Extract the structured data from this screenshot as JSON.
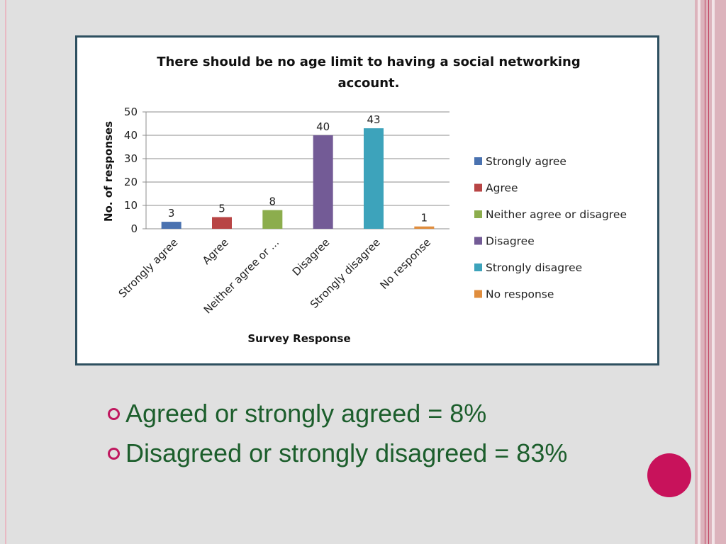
{
  "slide": {
    "bullets": [
      "Agreed or strongly agreed = 8%",
      "Disagreed or strongly disagreed = 83%"
    ],
    "colors": {
      "bullet_text": "#1c5e2c",
      "bullet_marker": "#c0185f",
      "accent_dot": "#c8125b",
      "frame": "#2e5060"
    }
  },
  "chart_data": {
    "type": "bar",
    "title_lines": [
      "There should be no age limit to having a social networking",
      "account."
    ],
    "xlabel": "Survey Response",
    "ylabel": "No. of responses",
    "ylim": [
      0,
      50
    ],
    "yticks": [
      0,
      10,
      20,
      30,
      40,
      50
    ],
    "grid": true,
    "legend_position": "right",
    "categories": [
      "Strongly agree",
      "Agree",
      "Neither agree or ...",
      "Disagree",
      "Strongly disagree",
      "No response"
    ],
    "values": [
      3,
      5,
      8,
      40,
      43,
      1
    ],
    "legend": [
      "Strongly agree",
      "Agree",
      "Neither agree or disagree",
      "Disagree",
      "Strongly disagree",
      "No response"
    ],
    "colors": [
      "#4a72b0",
      "#b84545",
      "#8cad4d",
      "#735b96",
      "#3da3bb",
      "#e08d3d"
    ]
  }
}
